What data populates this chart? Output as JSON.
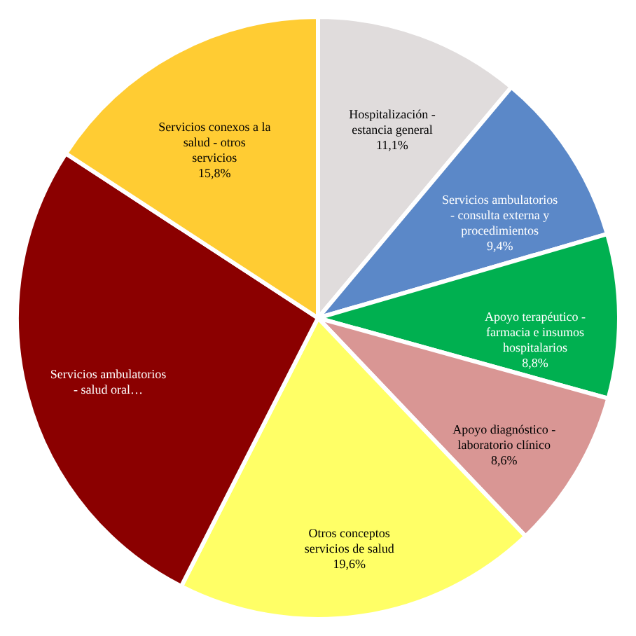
{
  "chart_data": {
    "type": "pie",
    "categories": [
      "Hospitalización - estancia general",
      "Servicios ambulatorios - consulta externa y procedimientos",
      "Apoyo terapéutico - farmacia e insumos hospitalarios",
      "Apoyo diagnóstico - laboratorio clínico",
      "Otros conceptos servicios de salud",
      "Servicios ambulatorios - salud oral…",
      "Servicios conexos a la salud - otros servicios"
    ],
    "values": [
      11.1,
      9.4,
      8.8,
      8.6,
      19.6,
      26.7,
      15.8
    ],
    "colors": [
      "#e0dcdc",
      "#5b88c8",
      "#00b050",
      "#d99694",
      "#ffff66",
      "#8b0000",
      "#ffcc33"
    ],
    "value_labels": [
      "11,1%",
      "9,4%",
      "8,8%",
      "8,6%",
      "19,6%",
      null,
      "15,8%"
    ],
    "legend": false
  }
}
